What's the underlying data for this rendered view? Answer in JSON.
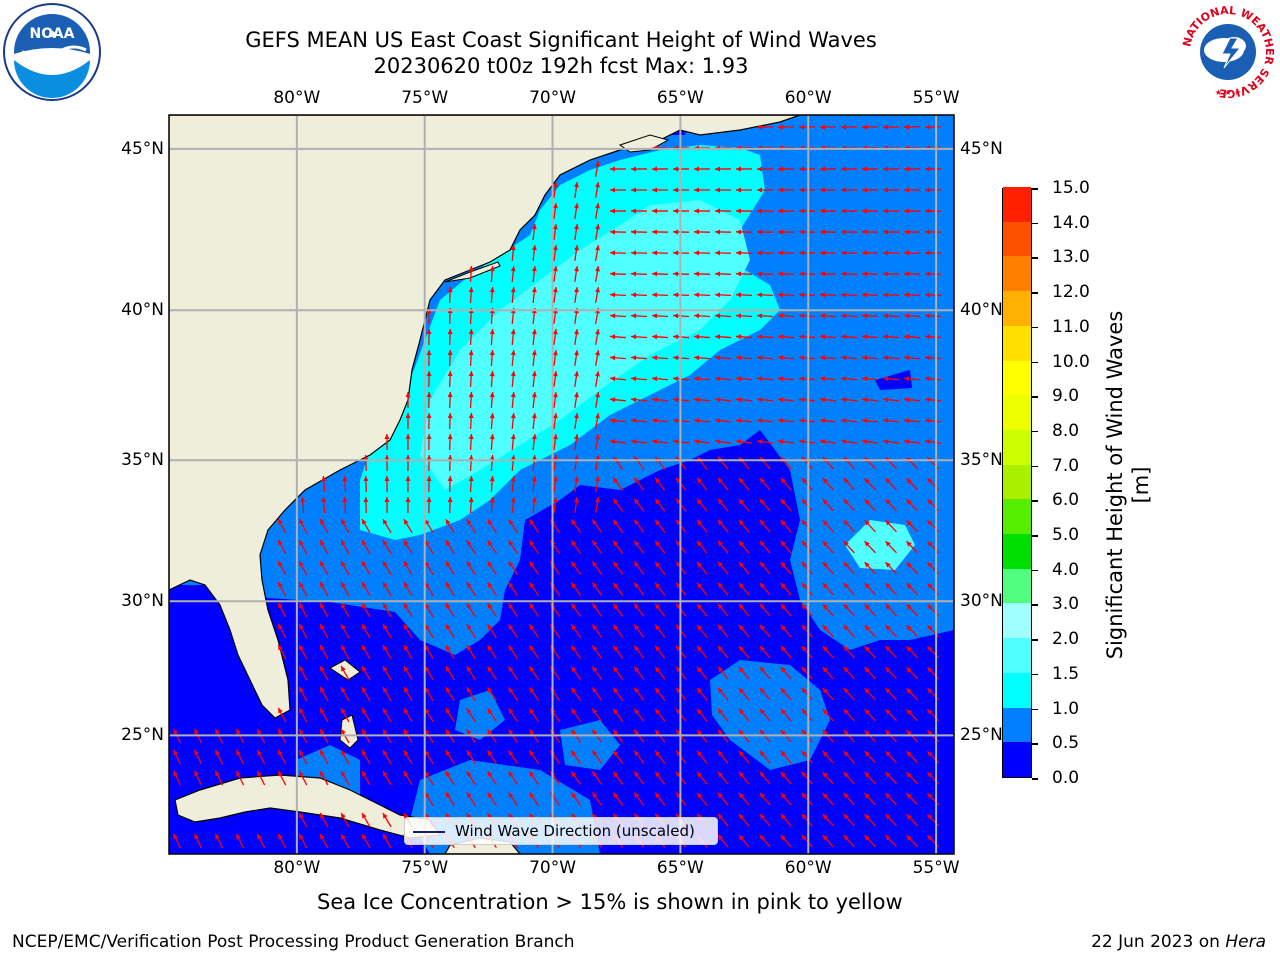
{
  "header": {
    "title_line1": "GEFS MEAN US East Coast Significant Height of Wind Waves",
    "title_line2": "20230620 t00z 192h fcst   Max: 1.93"
  },
  "logos": {
    "left": {
      "icon": "noaa-logo-icon",
      "text": "NOAA"
    },
    "right": {
      "icon": "national-weather-service-logo-icon",
      "ring_text": "NATIONAL WEATHER SERVICE"
    }
  },
  "map": {
    "lon_ticks": [
      "80°W",
      "75°W",
      "70°W",
      "65°W",
      "60°W",
      "55°W"
    ],
    "lat_ticks": [
      "45°N",
      "40°N",
      "35°N",
      "30°N",
      "25°N"
    ],
    "lon_values": [
      -80,
      -75,
      -70,
      -65,
      -60,
      -55
    ],
    "lat_values": [
      45,
      40,
      35,
      30,
      25
    ],
    "extent": {
      "lon_min": -85,
      "lon_max": -54.3,
      "lat_min": 20.4,
      "lat_max": 46.0
    },
    "colors": {
      "land": "#efeedb",
      "coast": "#000000",
      "grid": "#b0b0b0",
      "arrow": "#ff0000"
    }
  },
  "legend": {
    "label": "Wind Wave Direction (unscaled)"
  },
  "colorbar": {
    "title": "Significant Height of Wind Waves [m]",
    "labels": [
      "15.0",
      "14.0",
      "13.0",
      "12.0",
      "11.0",
      "10.0",
      "9.0",
      "8.0",
      "7.0",
      "6.0",
      "5.0",
      "4.0",
      "3.0",
      "2.0",
      "1.5",
      "1.0",
      "0.5",
      "0.0"
    ],
    "levels": [
      0.0,
      0.5,
      1.0,
      1.5,
      2.0,
      3.0,
      4.0,
      5.0,
      6.0,
      7.0,
      8.0,
      9.0,
      10.0,
      11.0,
      12.0,
      13.0,
      14.0,
      15.0
    ],
    "colors": [
      "#0000ff",
      "#0080ff",
      "#00ffff",
      "#50ffff",
      "#a0ffff",
      "#50ff80",
      "#00e000",
      "#55ee00",
      "#aaee00",
      "#ccff00",
      "#eeff00",
      "#ffff00",
      "#ffe000",
      "#ffb000",
      "#ff8000",
      "#ff5000",
      "#ff2000",
      "#ff0000"
    ]
  },
  "notes": {
    "ice": "Sea Ice Concentration > 15% is shown in pink to yellow"
  },
  "footer": {
    "left": "NCEP/EMC/Verification Post Processing Product Generation Branch",
    "date": "22 Jun 2023 on",
    "machine": "Hera"
  }
}
